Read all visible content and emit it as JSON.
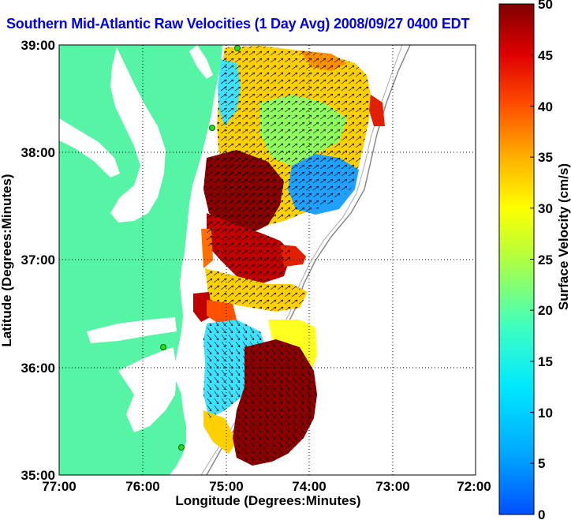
{
  "map": {
    "title": "Southern Mid-Atlantic Raw Velocities (1 Day Avg) 2008/09/27 0400 EDT",
    "xlabel": "Longitude (Degrees:Minutes)",
    "ylabel": "Latitude (Degrees:Minutes)",
    "x_ticks": [
      "77:00",
      "76:00",
      "75:00",
      "74:00",
      "73:00",
      "72:00"
    ],
    "y_ticks": [
      "39:00",
      "38:00",
      "37:00",
      "36:00",
      "35:00"
    ],
    "colorbar": {
      "label": "Surface Velocity (cm/s)",
      "unit": "cm/s",
      "ticks": [
        "50",
        "45",
        "40",
        "35",
        "30",
        "25",
        "20",
        "15",
        "10",
        "5",
        "0"
      ],
      "range": [
        0,
        50
      ]
    },
    "colors": {
      "land": "#55f5a5",
      "title": "#0000ee",
      "station": "#22dd22"
    }
  }
}
